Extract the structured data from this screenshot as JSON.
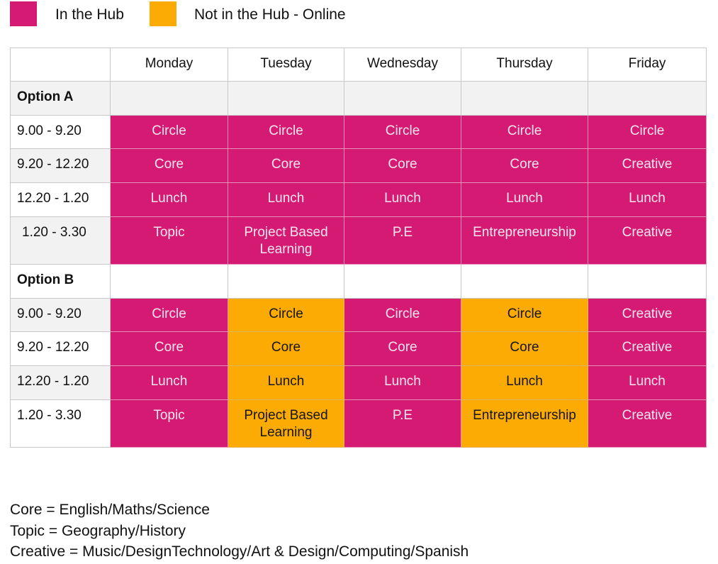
{
  "colors": {
    "in_hub": "#d51a74",
    "online": "#fcab04",
    "grid": "#c8c8c8",
    "row_alt": "#f2f2f2"
  },
  "legend": [
    {
      "label": "In the Hub",
      "color": "#d51a74"
    },
    {
      "label": "Not in the Hub - Online",
      "color": "#fcab04"
    }
  ],
  "timetable": {
    "days": [
      "Monday",
      "Tuesday",
      "Wednesday",
      "Thursday",
      "Friday"
    ],
    "options": [
      {
        "label": "Option A",
        "rows": [
          {
            "time": "9.00 - 9.20",
            "cells": [
              {
                "text": "Circle",
                "mode": "hub"
              },
              {
                "text": "Circle",
                "mode": "hub"
              },
              {
                "text": "Circle",
                "mode": "hub"
              },
              {
                "text": "Circle",
                "mode": "hub"
              },
              {
                "text": "Circle",
                "mode": "hub"
              }
            ]
          },
          {
            "time": "9.20 - 12.20",
            "cells": [
              {
                "text": "Core",
                "mode": "hub"
              },
              {
                "text": "Core",
                "mode": "hub"
              },
              {
                "text": "Core",
                "mode": "hub"
              },
              {
                "text": "Core",
                "mode": "hub"
              },
              {
                "text": "Creative",
                "mode": "hub"
              }
            ]
          },
          {
            "time": "12.20 - 1.20",
            "cells": [
              {
                "text": "Lunch",
                "mode": "hub"
              },
              {
                "text": "Lunch",
                "mode": "hub"
              },
              {
                "text": "Lunch",
                "mode": "hub"
              },
              {
                "text": "Lunch",
                "mode": "hub"
              },
              {
                "text": "Lunch",
                "mode": "hub"
              }
            ]
          },
          {
            "time": "1.20 - 3.30",
            "cells": [
              {
                "text": "Topic",
                "mode": "hub"
              },
              {
                "text": "Project Based\nLearning",
                "mode": "hub"
              },
              {
                "text": "P.E",
                "mode": "hub"
              },
              {
                "text": "Entrepreneurship",
                "mode": "hub"
              },
              {
                "text": "Creative",
                "mode": "hub"
              }
            ]
          }
        ]
      },
      {
        "label": "Option B",
        "rows": [
          {
            "time": "9.00 - 9.20",
            "cells": [
              {
                "text": "Circle",
                "mode": "hub"
              },
              {
                "text": "Circle",
                "mode": "online"
              },
              {
                "text": "Circle",
                "mode": "hub"
              },
              {
                "text": "Circle",
                "mode": "online"
              },
              {
                "text": "Creative",
                "mode": "hub"
              }
            ]
          },
          {
            "time": "9.20 - 12.20",
            "cells": [
              {
                "text": "Core",
                "mode": "hub"
              },
              {
                "text": "Core",
                "mode": "online"
              },
              {
                "text": "Core",
                "mode": "hub"
              },
              {
                "text": "Core",
                "mode": "online"
              },
              {
                "text": "Creative",
                "mode": "hub"
              }
            ]
          },
          {
            "time": "12.20 - 1.20",
            "cells": [
              {
                "text": "Lunch",
                "mode": "hub"
              },
              {
                "text": "Lunch",
                "mode": "online"
              },
              {
                "text": "Lunch",
                "mode": "hub"
              },
              {
                "text": "Lunch",
                "mode": "online"
              },
              {
                "text": "Lunch",
                "mode": "hub"
              }
            ]
          },
          {
            "time": "1.20 - 3.30",
            "cells": [
              {
                "text": "Topic",
                "mode": "hub"
              },
              {
                "text": "Project Based\nLearning",
                "mode": "online"
              },
              {
                "text": "P.E",
                "mode": "hub"
              },
              {
                "text": "Entrepreneurship",
                "mode": "online"
              },
              {
                "text": "Creative",
                "mode": "hub"
              }
            ]
          }
        ]
      }
    ]
  },
  "notes": [
    "Core = English/Maths/Science",
    "Topic = Geography/History",
    "Creative = Music/DesignTechnology/Art & Design/Computing/Spanish"
  ]
}
